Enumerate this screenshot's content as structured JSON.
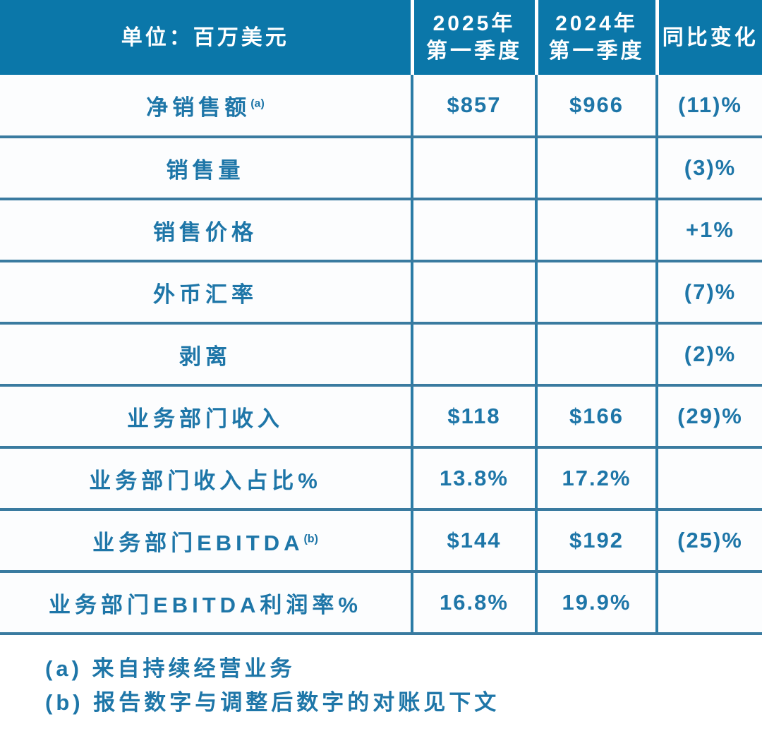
{
  "header": {
    "unit_label": "单位：百万美元",
    "col_2025": {
      "line1": "2025年",
      "line2": "第一季度"
    },
    "col_2024": {
      "line1": "2024年",
      "line2": "第一季度"
    },
    "col_change": "同比变化"
  },
  "chart_data": {
    "type": "table",
    "title": "单位：百万美元",
    "columns": [
      "单位：百万美元",
      "2025年第一季度",
      "2024年第一季度",
      "同比变化"
    ],
    "rows": [
      {
        "label": "净销售额",
        "sup": "(a)",
        "q1_2025": "$857",
        "q1_2024": "$966",
        "yoy": "(11)%"
      },
      {
        "label": "销售量",
        "sup": "",
        "q1_2025": "",
        "q1_2024": "",
        "yoy": "(3)%"
      },
      {
        "label": "销售价格",
        "sup": "",
        "q1_2025": "",
        "q1_2024": "",
        "yoy": "+1%"
      },
      {
        "label": "外币汇率",
        "sup": "",
        "q1_2025": "",
        "q1_2024": "",
        "yoy": "(7)%"
      },
      {
        "label": "剥离",
        "sup": "",
        "q1_2025": "",
        "q1_2024": "",
        "yoy": "(2)%"
      },
      {
        "label": "业务部门收入",
        "sup": "",
        "q1_2025": "$118",
        "q1_2024": "$166",
        "yoy": "(29)%"
      },
      {
        "label": "业务部门收入占比%",
        "sup": "",
        "q1_2025": "13.8%",
        "q1_2024": "17.2%",
        "yoy": ""
      },
      {
        "label": "业务部门EBITDA",
        "sup": "(b)",
        "q1_2025": "$144",
        "q1_2024": "$192",
        "yoy": "(25)%"
      },
      {
        "label": "业务部门EBITDA利润率%",
        "sup": "",
        "q1_2025": "16.8%",
        "q1_2024": "19.9%",
        "yoy": ""
      }
    ],
    "footnotes": [
      "(a) 来自持续经营业务",
      "(b) 报告数字与调整后数字的对账见下文"
    ]
  },
  "colors": {
    "header_bg": "#0b77a9",
    "header_text": "#ffffff",
    "cell_text": "#1e76a8",
    "h_border": "#3a7ba0",
    "v_border": "#2b7ca6",
    "cell_bg": "#fcfdfe"
  }
}
